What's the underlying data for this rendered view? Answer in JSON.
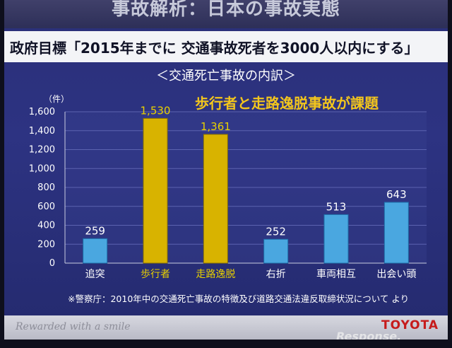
{
  "slide": {
    "top_title": "事故解析：日本の事故実態",
    "subtitle": "政府目標「2015年までに 交通事故死者を3000人以内にする」",
    "highlight": "歩行者と走路逸脱事故が課題",
    "footnote": "※警察庁：2010年中の交通死亡事故の特徴及び道路交通法違反取締状況について より",
    "tagline": "Rewarded with a smile",
    "logo_text": "TOYOTA",
    "watermark": "Response."
  },
  "chart_data": {
    "type": "bar",
    "title": "＜交通死亡事故の内訳＞",
    "ylabel": "（件）",
    "xlabel": "",
    "categories": [
      "追突",
      "歩行者",
      "走路逸脱",
      "右折",
      "車両相互",
      "出会い頭"
    ],
    "values": [
      259,
      1530,
      1361,
      252,
      513,
      643
    ],
    "value_labels": [
      "259",
      "1,530",
      "1,361",
      "252",
      "513",
      "643"
    ],
    "ylim": [
      0,
      1600
    ],
    "yticks": [
      0,
      200,
      400,
      600,
      800,
      1000,
      1200,
      1400,
      1600
    ],
    "ytick_labels": [
      "0",
      "200",
      "400",
      "600",
      "800",
      "1,000",
      "1,200",
      "1,400",
      "1,600"
    ],
    "grid": true,
    "highlighted_categories": [
      "歩行者",
      "走路逸脱"
    ],
    "colors": {
      "normal_bar": "#4aa7e0",
      "highlight_bar": "#d8b300",
      "normal_text": "#ffffff",
      "highlight_text": "#e8d000"
    }
  }
}
